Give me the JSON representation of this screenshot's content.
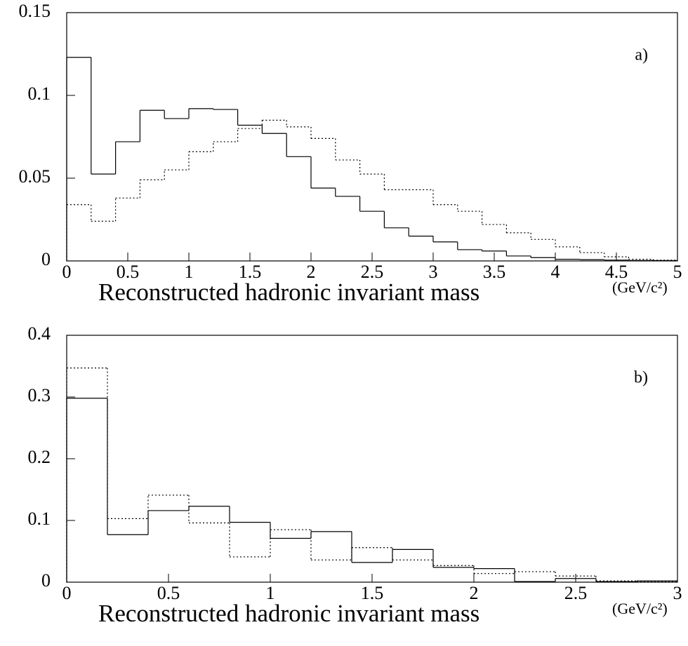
{
  "chart_data": [
    {
      "type": "histogram",
      "panel_label": "a)",
      "xlabel": "Reconstructed hadronic invariant mass",
      "x_unit": "(GeV/c²)",
      "bins": [
        0,
        0.2,
        0.4,
        0.6,
        0.8,
        1.0,
        1.2,
        1.4,
        1.6,
        1.8,
        2.0,
        2.2,
        2.4,
        2.6,
        2.8,
        3.0,
        3.2,
        3.4,
        3.6,
        3.8,
        4.0,
        4.2,
        4.4,
        4.6,
        4.8,
        5.0
      ],
      "series": [
        {
          "color": "#000000",
          "line_style": "solid",
          "values": [
            0.123,
            0.0525,
            0.072,
            0.091,
            0.086,
            0.092,
            0.0915,
            0.082,
            0.077,
            0.063,
            0.044,
            0.039,
            0.03,
            0.02,
            0.015,
            0.0115,
            0.0068,
            0.006,
            0.003,
            0.002,
            0.001,
            0.0008,
            0.0005,
            0.0003,
            0.0002
          ]
        },
        {
          "color": "#000000",
          "line_style": "dotted",
          "values": [
            0.034,
            0.024,
            0.038,
            0.049,
            0.055,
            0.066,
            0.072,
            0.08,
            0.085,
            0.081,
            0.074,
            0.061,
            0.0525,
            0.043,
            0.043,
            0.034,
            0.03,
            0.022,
            0.017,
            0.013,
            0.0085,
            0.005,
            0.0025,
            0.001,
            0.0005
          ]
        }
      ],
      "xlim": [
        0,
        5
      ],
      "xticks": [
        0,
        0.5,
        1,
        1.5,
        2,
        2.5,
        3,
        3.5,
        4,
        4.5,
        5
      ],
      "ylim": [
        0,
        0.15
      ],
      "yticks": [
        0,
        0.05,
        0.1,
        0.15
      ]
    },
    {
      "type": "histogram",
      "panel_label": "b)",
      "xlabel": "Reconstructed hadronic invariant mass",
      "x_unit": "(GeV/c²)",
      "bins": [
        0,
        0.2,
        0.4,
        0.6,
        0.8,
        1.0,
        1.2,
        1.4,
        1.6,
        1.8,
        2.0,
        2.2,
        2.4,
        2.6,
        2.8,
        3.0
      ],
      "series": [
        {
          "color": "#000000",
          "line_style": "solid",
          "values": [
            0.298,
            0.077,
            0.116,
            0.123,
            0.097,
            0.071,
            0.082,
            0.032,
            0.053,
            0.024,
            0.022,
            0.001,
            0.006,
            0.001,
            0.002
          ]
        },
        {
          "color": "#000000",
          "line_style": "dotted",
          "values": [
            0.347,
            0.103,
            0.141,
            0.096,
            0.041,
            0.085,
            0.036,
            0.056,
            0.036,
            0.027,
            0.014,
            0.017,
            0.01,
            0.002,
            0.001
          ]
        }
      ],
      "xlim": [
        0,
        3
      ],
      "xticks": [
        0,
        0.5,
        1,
        1.5,
        2,
        2.5,
        3
      ],
      "ylim": [
        0,
        0.4
      ],
      "yticks": [
        0,
        0.1,
        0.2,
        0.3,
        0.4
      ]
    }
  ]
}
